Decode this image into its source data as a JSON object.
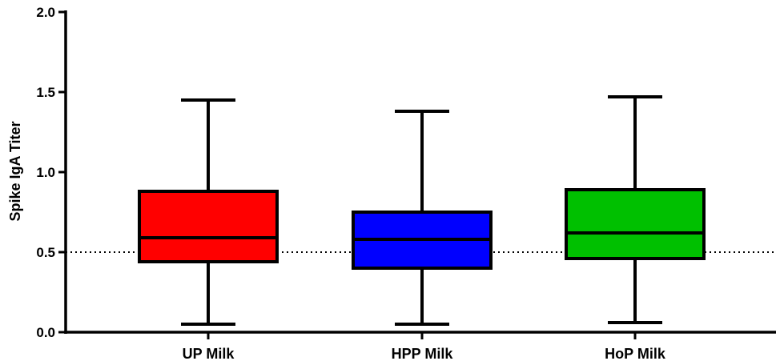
{
  "chart_data": {
    "type": "box",
    "ylabel": "Spike IgA Titer",
    "xlabel": "",
    "ylim": [
      0,
      2.0
    ],
    "yticks": [
      "0.0",
      "0.5",
      "1.0",
      "1.5",
      "2.0"
    ],
    "reference_line": {
      "y": 0.5,
      "style": "dotted"
    },
    "categories": [
      "UP Milk",
      "HPP Milk",
      "HoP Milk"
    ],
    "series": [
      {
        "category": "UP Milk",
        "color": "#ff0000",
        "min": 0.05,
        "q1": 0.44,
        "median": 0.59,
        "q3": 0.88,
        "max": 1.45
      },
      {
        "category": "HPP Milk",
        "color": "#0000ff",
        "min": 0.05,
        "q1": 0.4,
        "median": 0.58,
        "q3": 0.75,
        "max": 1.38
      },
      {
        "category": "HoP Milk",
        "color": "#00c000",
        "min": 0.06,
        "q1": 0.46,
        "median": 0.62,
        "q3": 0.89,
        "max": 1.47
      }
    ]
  }
}
